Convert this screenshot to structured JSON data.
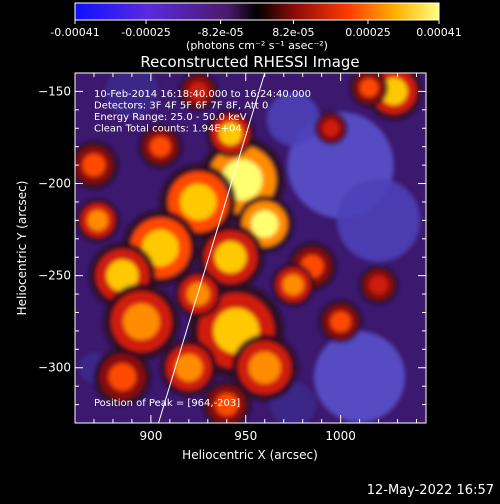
{
  "colorbar": {
    "ticks": [
      {
        "value": -0.00041,
        "label": "-0.00041"
      },
      {
        "value": -0.00025,
        "label": "-0.00025"
      },
      {
        "value": -8.2e-05,
        "label": "-8.2e-05"
      },
      {
        "value": 8.2e-05,
        "label": "8.2e-05"
      },
      {
        "value": 0.00025,
        "label": "0.00025"
      },
      {
        "value": 0.00041,
        "label": "0.00041"
      }
    ],
    "min": -0.00041,
    "max": 0.00041,
    "unit_label": "(photons cm⁻² s⁻¹ asec⁻²)"
  },
  "footer": {
    "date": "12-May-2022 16:57"
  },
  "colors": {
    "background": "#000000",
    "text": "#ffffff",
    "limb_line": "#ffffff"
  },
  "chart_data": {
    "type": "heatmap",
    "title": "Reconstructed RHESSI Image",
    "xlabel": "Heliocentric X (arcsec)",
    "ylabel": "Heliocentric Y (arcsec)",
    "xlim": [
      860,
      1045
    ],
    "ylim": [
      -330,
      -140
    ],
    "x_ticks": [
      900,
      950,
      1000
    ],
    "y_ticks": [
      -150,
      -200,
      -250,
      -300
    ],
    "annotations": [
      "10-Feb-2014 16:18:40.000 to 16:24:40.000",
      "Detectors: 3F 4F 5F 6F 7F 8F, Att 0",
      "Energy Range: 25.0 - 50.0 keV",
      "Clean    Total counts: 1.94E+04"
    ],
    "peak_label": "Position of Peak = [964,-203]",
    "peak": [
      964,
      -203
    ],
    "limb_line": [
      [
        904,
        -330
      ],
      [
        960,
        -140
      ]
    ],
    "hot_regions": [
      {
        "x": 948,
        "y": -198,
        "r": 18,
        "level": 1.0
      },
      {
        "x": 960,
        "y": -222,
        "r": 12,
        "level": 0.95
      },
      {
        "x": 942,
        "y": -173,
        "r": 10,
        "level": 0.85
      },
      {
        "x": 925,
        "y": -210,
        "r": 16,
        "level": 0.9
      },
      {
        "x": 905,
        "y": -235,
        "r": 16,
        "level": 0.9
      },
      {
        "x": 885,
        "y": -250,
        "r": 14,
        "level": 0.85
      },
      {
        "x": 942,
        "y": -240,
        "r": 14,
        "level": 0.85
      },
      {
        "x": 895,
        "y": -275,
        "r": 16,
        "level": 0.8
      },
      {
        "x": 945,
        "y": -280,
        "r": 20,
        "level": 0.85
      },
      {
        "x": 960,
        "y": -300,
        "r": 14,
        "level": 0.8
      },
      {
        "x": 920,
        "y": -300,
        "r": 12,
        "level": 0.75
      },
      {
        "x": 885,
        "y": -305,
        "r": 12,
        "level": 0.7
      },
      {
        "x": 870,
        "y": -190,
        "r": 10,
        "level": 0.7
      },
      {
        "x": 872,
        "y": -220,
        "r": 9,
        "level": 0.75
      },
      {
        "x": 905,
        "y": -180,
        "r": 9,
        "level": 0.65
      },
      {
        "x": 925,
        "y": -150,
        "r": 8,
        "level": 0.6
      },
      {
        "x": 925,
        "y": -260,
        "r": 10,
        "level": 0.8
      },
      {
        "x": 985,
        "y": -245,
        "r": 10,
        "level": 0.7
      },
      {
        "x": 1028,
        "y": -150,
        "r": 12,
        "level": 0.85
      },
      {
        "x": 1015,
        "y": -148,
        "r": 8,
        "level": 0.7
      },
      {
        "x": 1000,
        "y": -275,
        "r": 9,
        "level": 0.65
      },
      {
        "x": 1020,
        "y": -255,
        "r": 8,
        "level": 0.6
      },
      {
        "x": 975,
        "y": -255,
        "r": 9,
        "level": 0.75
      },
      {
        "x": 940,
        "y": -320,
        "r": 10,
        "level": 0.65
      },
      {
        "x": 995,
        "y": -170,
        "r": 7,
        "level": 0.55
      }
    ],
    "cold_regions": [
      {
        "x": 1000,
        "y": -190,
        "r": 28,
        "level": -0.35
      },
      {
        "x": 1020,
        "y": -220,
        "r": 22,
        "level": -0.3
      },
      {
        "x": 1010,
        "y": -305,
        "r": 24,
        "level": -0.35
      },
      {
        "x": 975,
        "y": -165,
        "r": 14,
        "level": -0.3
      },
      {
        "x": 890,
        "y": -150,
        "r": 14,
        "level": -0.25
      },
      {
        "x": 975,
        "y": -320,
        "r": 12,
        "level": -0.25
      },
      {
        "x": 870,
        "y": -300,
        "r": 8,
        "level": -0.2
      }
    ]
  }
}
